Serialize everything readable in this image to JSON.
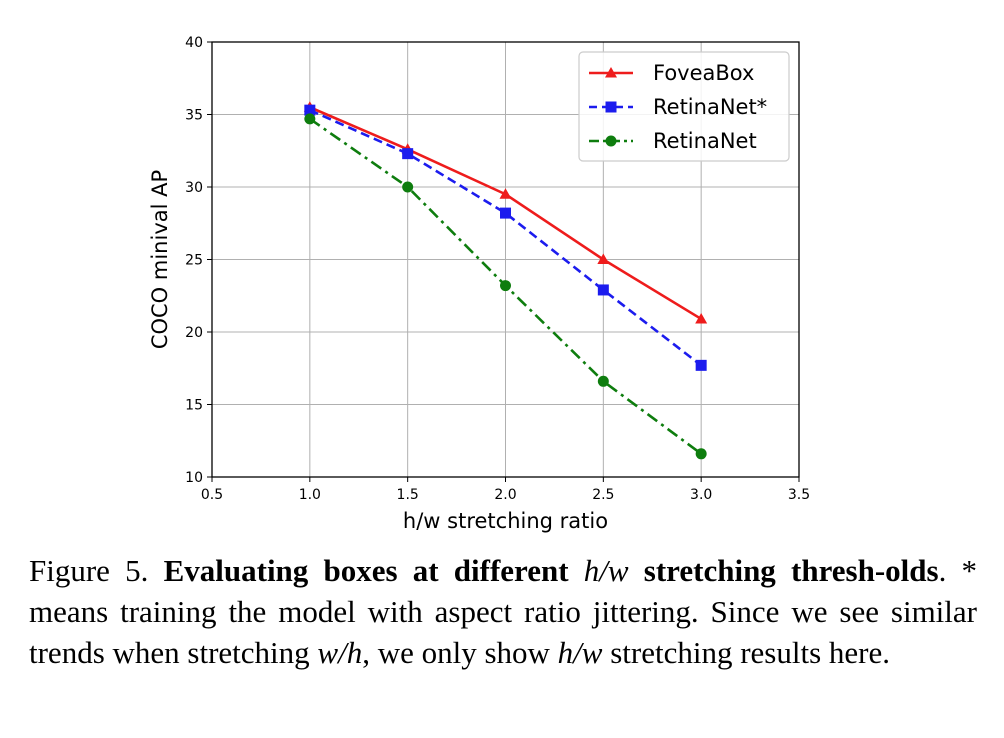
{
  "chart_data": {
    "type": "line",
    "xlabel": "h/w stretching ratio",
    "ylabel": "COCO minival AP",
    "xlim": [
      0.5,
      3.5
    ],
    "ylim": [
      10,
      40
    ],
    "xticks": [
      0.5,
      1.0,
      1.5,
      2.0,
      2.5,
      3.0,
      3.5
    ],
    "xtick_labels": [
      "0.5",
      "1.0",
      "1.5",
      "2.0",
      "2.5",
      "3.0",
      "3.5"
    ],
    "yticks": [
      10,
      15,
      20,
      25,
      30,
      35,
      40
    ],
    "ytick_labels": [
      "10",
      "15",
      "20",
      "25",
      "30",
      "35",
      "40"
    ],
    "grid": true,
    "legend_position": "top-right",
    "x": [
      1.0,
      1.5,
      2.0,
      2.5,
      3.0
    ],
    "series": [
      {
        "name": "FoveaBox",
        "color": "#ee1c1c",
        "marker": "triangle",
        "linestyle": "solid",
        "values": [
          35.5,
          32.6,
          29.5,
          25.0,
          20.9
        ]
      },
      {
        "name": "RetinaNet*",
        "color": "#1c1cee",
        "marker": "square",
        "linestyle": "dashed",
        "values": [
          35.3,
          32.3,
          28.2,
          22.9,
          17.7
        ]
      },
      {
        "name": "RetinaNet",
        "color": "#0e7d0e",
        "marker": "circle",
        "linestyle": "dashdot",
        "values": [
          34.7,
          30.0,
          23.2,
          16.6,
          11.6
        ]
      }
    ]
  },
  "caption": {
    "figure_label": "Figure 5.",
    "bold_part1": "Evaluating boxes at different",
    "math_hw": "h/w",
    "bold_part2": "stretching thresh-olds",
    "text1": ". * means training the model with aspect ratio jittering. Since we see similar trends when stretching",
    "math_wh": "w/h",
    "text2": ", we only show",
    "math_hw2": "h/w",
    "text3": "stretching results here."
  }
}
